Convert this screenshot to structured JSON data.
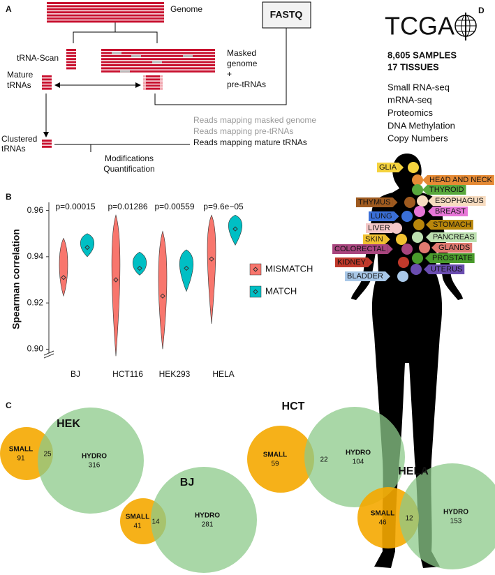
{
  "panel_a": {
    "label": "A",
    "genome": "Genome",
    "fastq": "FASTQ",
    "trna_scan": "tRNA-Scan",
    "masked": [
      "Masked",
      "genome",
      "+",
      "pre-tRNAs"
    ],
    "mature": [
      "Mature",
      "tRNAs"
    ],
    "clustered": [
      "Clustered",
      "tRNAs"
    ],
    "reads": [
      "Reads mapping masked genome",
      "Reads mapping pre-tRNAs",
      "Reads mapping mature tRNAs"
    ],
    "output": [
      "Modifications",
      "Quantification"
    ]
  },
  "chart_data": {
    "type": "violin",
    "panel_label": "B",
    "y_label": "Spearman correlation",
    "categories": [
      "BJ",
      "HCT116",
      "HEK293",
      "HELA"
    ],
    "annotations": [
      "p=0.00015",
      "p=0.01286",
      "p=0.00559",
      "p=9.6e−05"
    ],
    "series": [
      {
        "name": "MISMATCH",
        "color": "#f8766d",
        "values": [
          0.931,
          0.93,
          0.923,
          0.939
        ],
        "low": [
          0.923,
          0.897,
          0.9,
          0.911
        ],
        "high": [
          0.948,
          0.958,
          0.951,
          0.958
        ]
      },
      {
        "name": "MATCH",
        "color": "#00bfc4",
        "values": [
          0.944,
          0.935,
          0.935,
          0.952
        ],
        "low": [
          0.94,
          0.932,
          0.925,
          0.945
        ],
        "high": [
          0.95,
          0.942,
          0.943,
          0.958
        ]
      }
    ],
    "ylim": [
      0.8965,
      0.9635
    ],
    "yticks": [
      {
        "value": 0.9,
        "label": "0.90"
      },
      0.92,
      0.94,
      0.96
    ],
    "grid": false
  },
  "panel_c": {
    "label": "C",
    "venns": [
      {
        "title": "HEK",
        "left": "SMALL",
        "left_count": "91",
        "overlap": "25",
        "right": "HYDRO",
        "right_count": "316"
      },
      {
        "title": "BJ",
        "left": "SMALL",
        "left_count": "41",
        "overlap": "14",
        "right": "HYDRO",
        "right_count": "281"
      },
      {
        "title": "HCT",
        "left": "SMALL",
        "left_count": "59",
        "overlap": "22",
        "right": "HYDRO",
        "right_count": "104"
      },
      {
        "title": "HELA",
        "left": "SMALL",
        "left_count": "46",
        "overlap": "12",
        "right": "HYDRO",
        "right_count": "153"
      }
    ]
  },
  "panel_d": {
    "label": "D",
    "logo": "TCGA",
    "stats": [
      "8,605 SAMPLES",
      "17 TISSUES"
    ],
    "assays": [
      "Small RNA-seq",
      "mRNA-seq",
      "Proteomics",
      "DNA Methylation",
      "Copy Numbers"
    ],
    "tissues": [
      {
        "name": "GLIA",
        "color": "#f5d33e"
      },
      {
        "name": "HEAD AND NECK",
        "color": "#e58a35"
      },
      {
        "name": "THYROID",
        "color": "#58a83c"
      },
      {
        "name": "ESOPHAGUS",
        "color": "#f7dcc0"
      },
      {
        "name": "THYMUS",
        "color": "#9e5a1f"
      },
      {
        "name": "BREAST",
        "color": "#e776d7"
      },
      {
        "name": "LUNG",
        "color": "#3a6fd8"
      },
      {
        "name": "STOMACH",
        "color": "#b8860b"
      },
      {
        "name": "LIVER",
        "color": "#f5c8c8"
      },
      {
        "name": "PANCREAS",
        "color": "#bde0b0"
      },
      {
        "name": "SKIN",
        "color": "#f2c230"
      },
      {
        "name": "GLANDS",
        "color": "#e07a70"
      },
      {
        "name": "COLORECTAL",
        "color": "#a8457e"
      },
      {
        "name": "PROSTATE",
        "color": "#4a9b2c"
      },
      {
        "name": "KIDNEY",
        "color": "#c0392b"
      },
      {
        "name": "UTERUS",
        "color": "#6a4db0"
      },
      {
        "name": "BLADDER",
        "color": "#a9c8e8"
      }
    ]
  }
}
